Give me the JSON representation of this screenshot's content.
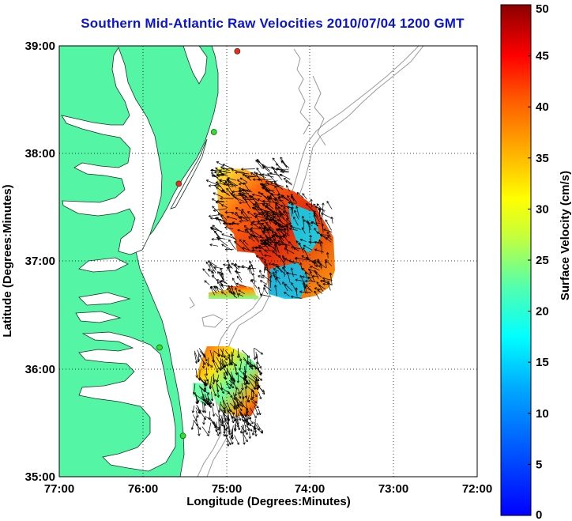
{
  "title": "Southern Mid-Atlantic Raw Velocities 2010/07/04 1200 GMT",
  "axes": {
    "xlabel": "Longitude (Degrees:Minutes)",
    "ylabel": "Latitude (Degrees:Minutes)",
    "x_ticks": [
      "77:00",
      "76:00",
      "75:00",
      "74:00",
      "73:00",
      "72:00"
    ],
    "y_ticks": [
      "39:00",
      "38:00",
      "37:00",
      "36:00",
      "35:00"
    ],
    "xlim": [
      -77,
      -72
    ],
    "ylim": [
      35,
      39
    ],
    "grid": "dotted"
  },
  "colorbar": {
    "label": "Surface Velocity (cm/s)",
    "ticks": [
      "0",
      "5",
      "10",
      "15",
      "20",
      "25",
      "30",
      "35",
      "40",
      "45",
      "50"
    ],
    "range": [
      0,
      50
    ],
    "colormap": "jet"
  },
  "colors": {
    "land": "#55f5a6",
    "water": "#ffffff",
    "bathymetry": "#9a9a9a",
    "title": "#0a14d6",
    "arrows": "#000000"
  },
  "stations": [
    {
      "lon": -74.87,
      "lat": 38.95,
      "status": "red"
    },
    {
      "lon": -75.15,
      "lat": 38.2,
      "status": "green"
    },
    {
      "lon": -75.57,
      "lat": 37.72,
      "status": "red"
    },
    {
      "lon": -75.8,
      "lat": 36.2,
      "status": "green"
    },
    {
      "lon": -75.52,
      "lat": 35.38,
      "status": "green"
    }
  ]
}
